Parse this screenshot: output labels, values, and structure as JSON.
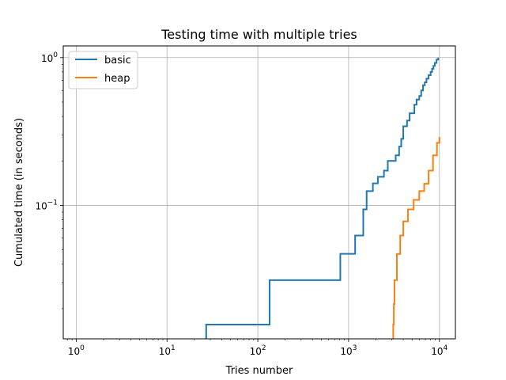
{
  "chart_data": {
    "type": "line",
    "title": "Testing time with multiple tries",
    "xlabel": "Tries number",
    "ylabel": "Cumulated time (in seconds)",
    "xscale": "log",
    "yscale": "log",
    "xlim": [
      0.72,
      15000
    ],
    "ylim": [
      0.0125,
      1.2
    ],
    "xticks": [
      {
        "base": "10",
        "exp": "0",
        "value": 1
      },
      {
        "base": "10",
        "exp": "1",
        "value": 10
      },
      {
        "base": "10",
        "exp": "2",
        "value": 100
      },
      {
        "base": "10",
        "exp": "3",
        "value": 1000
      },
      {
        "base": "10",
        "exp": "4",
        "value": 10000
      }
    ],
    "yticks": [
      {
        "base": "10",
        "exp": "−1",
        "value": 0.1
      },
      {
        "base": "10",
        "exp": "0",
        "value": 1
      }
    ],
    "grid": true,
    "legend_position": "top-left",
    "series": [
      {
        "name": "basic",
        "color": "#1f77b4",
        "drawstyle": "steps-post",
        "x": [
          27,
          135,
          810,
          1180,
          1450,
          1580,
          1850,
          2100,
          2450,
          2700,
          3000,
          3300,
          3600,
          3800,
          4000,
          4400,
          4700,
          5000,
          5300,
          5600,
          6000,
          6300,
          6600,
          6900,
          7200,
          7600,
          8000,
          8300,
          8600,
          8900,
          9300,
          9700
        ],
        "y": [
          0.0156,
          0.0312,
          0.047,
          0.0625,
          0.094,
          0.125,
          0.141,
          0.156,
          0.172,
          0.2,
          0.2,
          0.218,
          0.25,
          0.282,
          0.343,
          0.375,
          0.42,
          0.42,
          0.48,
          0.52,
          0.55,
          0.6,
          0.65,
          0.68,
          0.72,
          0.76,
          0.8,
          0.84,
          0.88,
          0.92,
          0.97,
          1.0
        ]
      },
      {
        "name": "heap",
        "color": "#ff7f0e",
        "drawstyle": "steps-post",
        "x": [
          3100,
          3150,
          3200,
          3400,
          3700,
          4000,
          4500,
          5200,
          6000,
          6800,
          7600,
          8500,
          9400,
          10000
        ],
        "y": [
          0.0156,
          0.0215,
          0.0312,
          0.0469,
          0.0625,
          0.078,
          0.094,
          0.109,
          0.125,
          0.14,
          0.172,
          0.218,
          0.265,
          0.29
        ]
      }
    ]
  }
}
